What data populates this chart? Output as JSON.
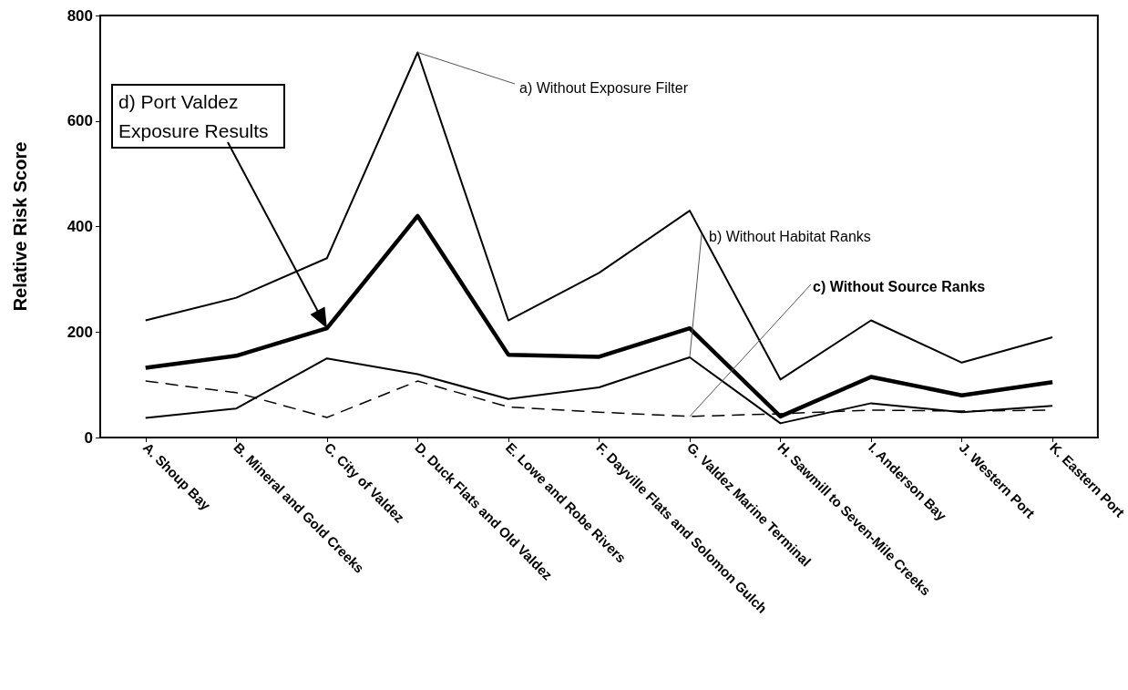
{
  "chart_data": {
    "type": "line",
    "ylabel": "Relative Risk Score",
    "categories": [
      "A. Shoup Bay",
      "B. Mineral and Gold Creeks",
      "C. City of Valdez",
      "D. Duck Flats and Old Valdez",
      "E. Lowe and Robe Rivers",
      "F. Dayville Flats and Solomon Gulch",
      "G. Valdez Marine Terminal",
      "H. Sawmill to Seven-Mile Creeks",
      "I. Anderson Bay",
      "J. Western Port",
      "K. Eastern Port"
    ],
    "series": [
      {
        "color": "#000000",
        "line_style": "solid",
        "values": [
          222,
          265,
          340,
          730,
          222,
          312,
          430,
          110,
          222,
          142,
          190
        ]
      },
      {
        "color": "#000000",
        "line_style": "solid",
        "values": [
          37,
          55,
          150,
          120,
          73,
          95,
          152,
          27,
          65,
          48,
          60
        ]
      },
      {
        "color": "#000000",
        "line_style": "dashed",
        "values": [
          107,
          85,
          38,
          107,
          58,
          48,
          40,
          45,
          52,
          50,
          52
        ]
      },
      {
        "color": "#000000",
        "line_style": "solid",
        "values": [
          132,
          155,
          207,
          420,
          157,
          153,
          207,
          40,
          115,
          80,
          105
        ]
      }
    ],
    "ylim": [
      0,
      800
    ],
    "yticks": [
      0,
      200,
      400,
      600,
      800
    ],
    "grid": false,
    "marker": "none",
    "annotations": [
      {
        "text": "a) Without Exposure Filter",
        "x": "D. Duck Flats and Old Valdez",
        "y": 730
      },
      {
        "text": "b) Without Habitat Ranks",
        "x": "G. Valdez Marine Terminal",
        "y": 152
      },
      {
        "text": "c) Without Source Ranks",
        "x": "G. Valdez Marine Terminal",
        "y": 40
      },
      {
        "text": "d) Port Valdez Exposure Results",
        "x": "C. City of Valdez",
        "y": 207
      }
    ]
  }
}
